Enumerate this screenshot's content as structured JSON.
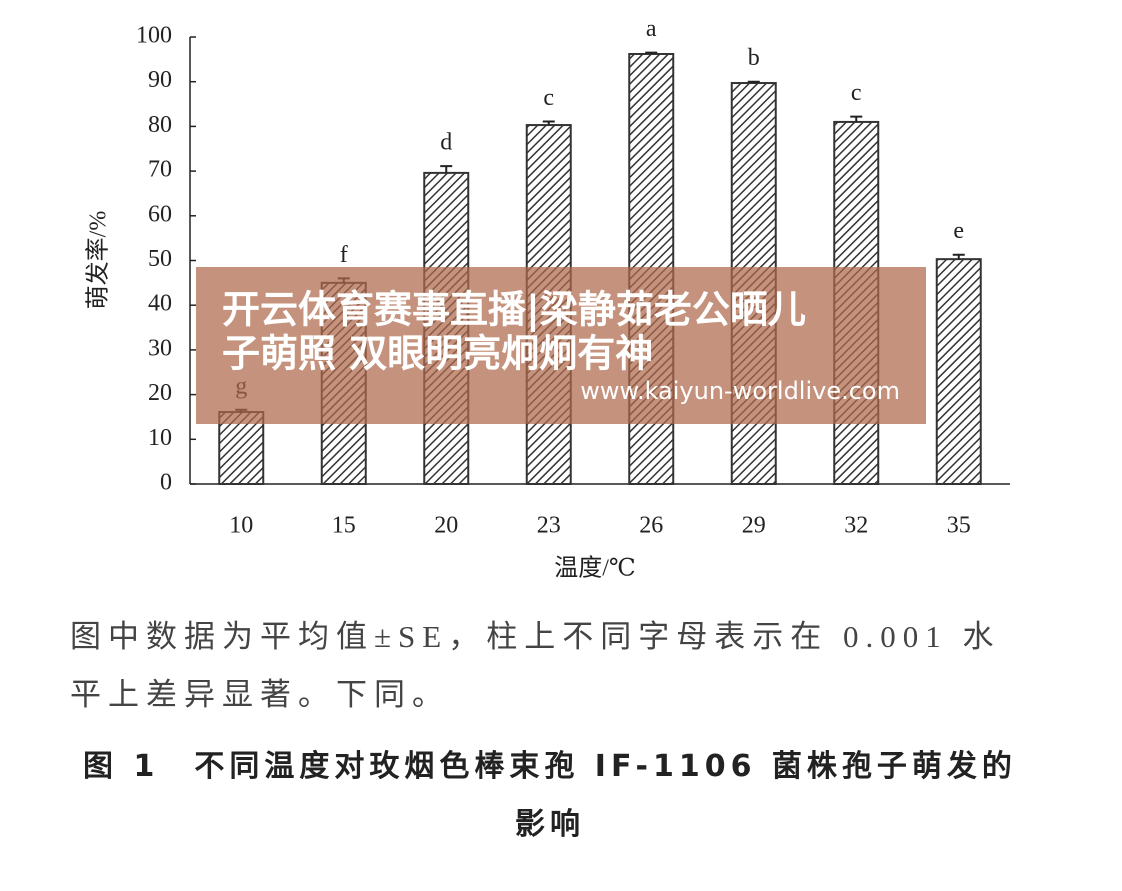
{
  "chart_data": {
    "type": "bar",
    "xlabel": "温度/℃",
    "ylabel": "萌发率/%",
    "categories": [
      "10",
      "15",
      "20",
      "23",
      "26",
      "29",
      "32",
      "35"
    ],
    "values": [
      16.1,
      45,
      69.6,
      80.3,
      96.2,
      89.7,
      81,
      50.3
    ],
    "errors": [
      0.5,
      1,
      1.5,
      0.8,
      0.3,
      0.3,
      1.2,
      1
    ],
    "letters": [
      "g",
      "f",
      "d",
      "c",
      "a",
      "b",
      "c",
      "e"
    ],
    "color": "#333333",
    "ylim": [
      0,
      100
    ],
    "yticks": [
      0,
      10,
      20,
      30,
      40,
      50,
      60,
      70,
      80,
      90,
      100
    ]
  },
  "overlay": {
    "lines": [
      "开云体育赛事直播|梁静茹老公晒儿",
      "子萌照 双眼明亮炯炯有神"
    ],
    "url": "www.kaiyun-worldlive.com"
  },
  "note": "图中数据为平均值±SE，柱上不同字母表示在 0.001 水平上差异显著。下同。",
  "caption": "图 1　不同温度对玫烟色棒束孢 IF-1106 菌株孢子萌发的影响"
}
